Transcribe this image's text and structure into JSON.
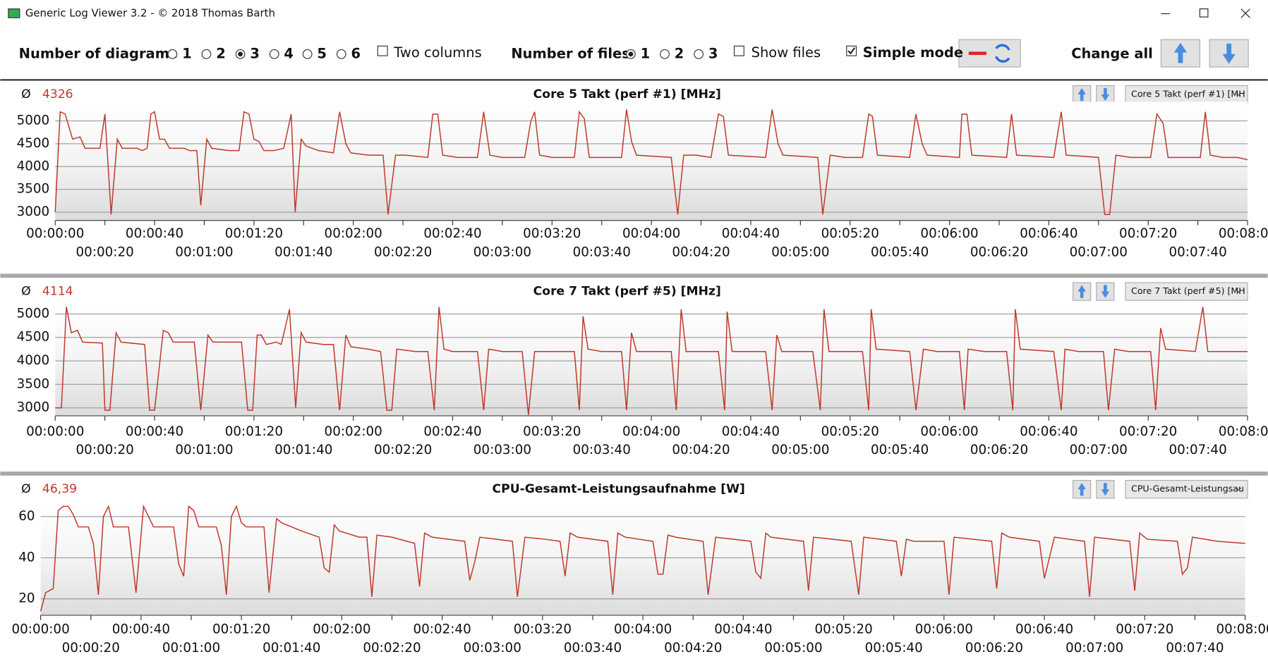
{
  "window": {
    "title": "Generic Log Viewer 3.2 - © 2018 Thomas Barth"
  },
  "toolbar": {
    "diagrams_label": "Number of diagrams",
    "diagram_options": [
      {
        "label": "1",
        "checked": false
      },
      {
        "label": "2",
        "checked": false
      },
      {
        "label": "3",
        "checked": true
      },
      {
        "label": "4",
        "checked": false
      },
      {
        "label": "5",
        "checked": false
      },
      {
        "label": "6",
        "checked": false
      }
    ],
    "two_columns": {
      "label": "Two columns",
      "checked": false
    },
    "files_label": "Number of files",
    "file_options": [
      {
        "label": "1",
        "checked": true
      },
      {
        "label": "2",
        "checked": false
      },
      {
        "label": "3",
        "checked": false
      }
    ],
    "show_files": {
      "label": "Show files",
      "checked": false
    },
    "simple_mode": {
      "label": "Simple mode",
      "checked": true
    },
    "change_all": "Change all"
  },
  "panels": [
    {
      "symbol": "Ø",
      "average": "4326",
      "selector": "Core 5 Takt (perf #1) [MH"
    },
    {
      "symbol": "Ø",
      "average": "4114",
      "selector": "Core 7 Takt (perf #5) [MH"
    },
    {
      "symbol": "Ø",
      "average": "46,39",
      "selector": "CPU-Gesamt-Leistungsau"
    }
  ],
  "chart_data": [
    {
      "type": "line",
      "title": "Core 5 Takt (perf #1) [MHz]",
      "color": "#c0392b",
      "grid": true,
      "x": [
        0,
        2,
        4,
        7,
        10,
        12,
        18,
        20,
        22.5,
        25,
        27,
        33,
        35,
        37,
        38.5,
        40,
        42,
        44,
        46,
        52,
        54,
        57,
        58.6,
        61,
        63,
        70,
        74,
        76,
        78,
        80,
        82,
        84,
        88,
        92,
        95,
        96.6,
        99,
        101,
        106,
        112,
        114.5,
        117,
        119,
        126,
        132,
        134,
        137,
        141,
        150,
        152,
        154,
        156,
        162,
        170,
        172.5,
        175,
        180,
        189,
        191.5,
        193,
        195,
        200,
        209,
        211,
        213,
        215,
        228,
        230,
        232,
        234,
        248,
        250.6,
        253,
        258,
        264,
        267,
        269,
        271,
        286,
        288.6,
        291,
        293,
        307,
        309,
        312,
        318,
        325,
        327.5,
        329,
        331,
        344,
        346.5,
        349,
        351,
        364,
        365,
        367,
        369,
        383,
        385,
        387,
        402,
        405,
        407,
        420,
        422.5,
        424.5,
        427,
        433,
        441,
        443.5,
        446,
        448,
        461,
        463,
        465,
        470,
        476,
        480
      ],
      "values": [
        3000,
        5200,
        5150,
        4600,
        4650,
        4400,
        4400,
        5150,
        2950,
        4600,
        4400,
        4400,
        4350,
        4400,
        5150,
        5200,
        4600,
        4600,
        4400,
        4400,
        4350,
        4350,
        3150,
        4600,
        4400,
        4350,
        4350,
        5200,
        5150,
        4600,
        4550,
        4350,
        4350,
        4400,
        5150,
        3000,
        4600,
        4450,
        4350,
        4300,
        5200,
        4500,
        4300,
        4250,
        4250,
        2950,
        4250,
        4250,
        4200,
        5150,
        5150,
        4250,
        4200,
        4200,
        5200,
        4250,
        4200,
        4200,
        5000,
        5200,
        4250,
        4200,
        4200,
        5200,
        5050,
        4200,
        4200,
        5250,
        4550,
        4250,
        4200,
        2950,
        4250,
        4250,
        4200,
        5150,
        5100,
        4250,
        4200,
        5250,
        4500,
        4250,
        4200,
        2950,
        4250,
        4200,
        4200,
        5150,
        5100,
        4250,
        4200,
        5150,
        4500,
        4250,
        4200,
        5150,
        5150,
        4250,
        4200,
        5150,
        4250,
        4200,
        5200,
        4250,
        4200,
        2950,
        2950,
        4250,
        4200,
        4200,
        5150,
        4950,
        4200,
        4200,
        5200,
        4250,
        4200,
        4200,
        4150
      ],
      "xlim": [
        0,
        480
      ],
      "xticks": [
        {
          "value": 0,
          "label": "00:00:00"
        },
        {
          "value": 20,
          "label": "00:00:20"
        },
        {
          "value": 40,
          "label": "00:00:40"
        },
        {
          "value": 60,
          "label": "00:01:00"
        },
        {
          "value": 80,
          "label": "00:01:20"
        },
        {
          "value": 100,
          "label": "00:01:40"
        },
        {
          "value": 120,
          "label": "00:02:00"
        },
        {
          "value": 140,
          "label": "00:02:20"
        },
        {
          "value": 160,
          "label": "00:02:40"
        },
        {
          "value": 180,
          "label": "00:03:00"
        },
        {
          "value": 200,
          "label": "00:03:20"
        },
        {
          "value": 220,
          "label": "00:03:40"
        },
        {
          "value": 240,
          "label": "00:04:00"
        },
        {
          "value": 260,
          "label": "00:04:20"
        },
        {
          "value": 280,
          "label": "00:04:40"
        },
        {
          "value": 300,
          "label": "00:05:00"
        },
        {
          "value": 320,
          "label": "00:05:20"
        },
        {
          "value": 340,
          "label": "00:05:40"
        },
        {
          "value": 360,
          "label": "00:06:00"
        },
        {
          "value": 380,
          "label": "00:06:20"
        },
        {
          "value": 400,
          "label": "00:06:40"
        },
        {
          "value": 420,
          "label": "00:07:00"
        },
        {
          "value": 440,
          "label": "00:07:20"
        },
        {
          "value": 460,
          "label": "00:07:40"
        },
        {
          "value": 480,
          "label": "00:08:00"
        }
      ],
      "ylim": [
        2820,
        5420
      ],
      "yticks": [
        3000,
        3500,
        4000,
        4500,
        5000
      ]
    },
    {
      "type": "line",
      "title": "Core 7 Takt (perf #5) [MHz]",
      "color": "#c0392b",
      "grid": true,
      "x": [
        0,
        2.5,
        4.5,
        6.5,
        9,
        11,
        19,
        20,
        22,
        24.5,
        26.5,
        36,
        38,
        40,
        43.5,
        45.5,
        47.5,
        56,
        58.6,
        61.5,
        63.5,
        75,
        77.5,
        79.5,
        81.3,
        83,
        85,
        89,
        91,
        94.3,
        96.8,
        99,
        101,
        108,
        112,
        114.5,
        117,
        119,
        126,
        131,
        133.5,
        135.5,
        137.5,
        145,
        150,
        152.6,
        154.5,
        156.5,
        160,
        170,
        172.5,
        174.5,
        180,
        188,
        190.5,
        193,
        203,
        209,
        211,
        212.5,
        214.5,
        220,
        228,
        230,
        232,
        234,
        240,
        248,
        250,
        252,
        254,
        267,
        269.5,
        270.5,
        272.5,
        286,
        288.6,
        290.5,
        292.5,
        305,
        308,
        309.5,
        311.5,
        325,
        327.5,
        328.5,
        330.5,
        344,
        346.5,
        349.5,
        355,
        364,
        366,
        367.5,
        374,
        383,
        385.5,
        386.5,
        388.5,
        402,
        405,
        406.5,
        412,
        422,
        424,
        426.5,
        432,
        441,
        443,
        445,
        447,
        459,
        462,
        464,
        470,
        480
      ],
      "values": [
        3000,
        3000,
        5150,
        4600,
        4650,
        4400,
        4380,
        2950,
        2950,
        4600,
        4400,
        4350,
        2950,
        2950,
        4650,
        4600,
        4400,
        4400,
        2950,
        4550,
        4400,
        4400,
        2950,
        2950,
        4550,
        4550,
        4350,
        4400,
        4350,
        5100,
        3000,
        4600,
        4400,
        4350,
        4350,
        2950,
        4550,
        4300,
        4250,
        4200,
        2950,
        2950,
        4250,
        4200,
        4200,
        2950,
        5150,
        4250,
        4200,
        4200,
        2950,
        4250,
        4200,
        4200,
        2850,
        4200,
        4200,
        4200,
        2950,
        4950,
        4250,
        4200,
        4200,
        2950,
        4600,
        4200,
        4200,
        4200,
        2950,
        5100,
        4200,
        4200,
        2950,
        5050,
        4200,
        4200,
        2950,
        4550,
        4200,
        4200,
        2950,
        5100,
        4200,
        4200,
        2950,
        5100,
        4250,
        4200,
        2950,
        4250,
        4200,
        4200,
        2950,
        4250,
        4200,
        4200,
        2950,
        5100,
        4250,
        4200,
        2950,
        4250,
        4200,
        4200,
        2950,
        4250,
        4200,
        4200,
        2950,
        4700,
        4250,
        4200,
        5150,
        4200,
        4200,
        4200
      ],
      "xlim": [
        0,
        480
      ],
      "xticks": [
        {
          "value": 0,
          "label": "00:00:00"
        },
        {
          "value": 20,
          "label": "00:00:20"
        },
        {
          "value": 40,
          "label": "00:00:40"
        },
        {
          "value": 60,
          "label": "00:01:00"
        },
        {
          "value": 80,
          "label": "00:01:20"
        },
        {
          "value": 100,
          "label": "00:01:40"
        },
        {
          "value": 120,
          "label": "00:02:00"
        },
        {
          "value": 140,
          "label": "00:02:20"
        },
        {
          "value": 160,
          "label": "00:02:40"
        },
        {
          "value": 180,
          "label": "00:03:00"
        },
        {
          "value": 200,
          "label": "00:03:20"
        },
        {
          "value": 220,
          "label": "00:03:40"
        },
        {
          "value": 240,
          "label": "00:04:00"
        },
        {
          "value": 260,
          "label": "00:04:20"
        },
        {
          "value": 280,
          "label": "00:04:40"
        },
        {
          "value": 300,
          "label": "00:05:00"
        },
        {
          "value": 320,
          "label": "00:05:20"
        },
        {
          "value": 340,
          "label": "00:05:40"
        },
        {
          "value": 360,
          "label": "00:06:00"
        },
        {
          "value": 380,
          "label": "00:06:20"
        },
        {
          "value": 400,
          "label": "00:06:40"
        },
        {
          "value": 420,
          "label": "00:07:00"
        },
        {
          "value": 440,
          "label": "00:07:20"
        },
        {
          "value": 460,
          "label": "00:07:40"
        },
        {
          "value": 480,
          "label": "00:08:00"
        }
      ],
      "ylim": [
        2830,
        5220
      ],
      "yticks": [
        3000,
        3500,
        4000,
        4500,
        5000
      ]
    },
    {
      "type": "line",
      "title": "CPU-Gesamt-Leistungsaufnahme [W]",
      "color": "#c0392b",
      "grid": true,
      "x": [
        0,
        2,
        5,
        7,
        9,
        11,
        13,
        15,
        19,
        21,
        23,
        25,
        27,
        29,
        35,
        38,
        41,
        43,
        45,
        53,
        55,
        57,
        59,
        61,
        63,
        70,
        72,
        74,
        76,
        78,
        80,
        82,
        89,
        91,
        94,
        96,
        104,
        111,
        113,
        115,
        117,
        119,
        127,
        130,
        132,
        134,
        140,
        149,
        151,
        153,
        156,
        169,
        171,
        173,
        175,
        188,
        190,
        193,
        201,
        207,
        209,
        211,
        214,
        226,
        228,
        230,
        233,
        244,
        246,
        248,
        250,
        253,
        264,
        266,
        269,
        283,
        285,
        287,
        289,
        291,
        304,
        306,
        308,
        323,
        326,
        328,
        341,
        343,
        345,
        348,
        360,
        362,
        364,
        379,
        381,
        383,
        386,
        398,
        400,
        402,
        404,
        416,
        418,
        420,
        434,
        436,
        438,
        441,
        453,
        455,
        457,
        459,
        469,
        480
      ],
      "values": [
        14,
        23,
        25,
        63,
        65,
        65,
        61,
        55,
        55,
        47,
        22,
        60,
        65,
        55,
        55,
        23,
        65,
        60,
        55,
        55,
        37,
        31,
        65,
        63,
        55,
        55,
        46,
        22,
        60,
        65,
        57,
        55,
        55,
        23,
        59,
        57,
        53,
        50,
        35,
        33,
        56,
        53,
        50,
        50,
        21,
        51,
        50,
        47,
        26,
        52,
        50,
        48,
        29,
        38,
        50,
        48,
        21,
        50,
        49,
        48,
        31,
        52,
        50,
        48,
        22,
        52,
        50,
        48,
        32,
        32,
        51,
        50,
        48,
        22,
        50,
        48,
        33,
        30,
        52,
        50,
        48,
        24,
        50,
        48,
        22,
        50,
        48,
        31,
        49,
        48,
        48,
        22,
        50,
        48,
        25,
        52,
        50,
        48,
        30,
        40,
        50,
        48,
        21,
        50,
        48,
        24,
        52,
        49,
        48,
        32,
        35,
        50,
        48,
        47
      ],
      "xlim": [
        0,
        480
      ],
      "xticks": [
        {
          "value": 0,
          "label": "00:00:00"
        },
        {
          "value": 20,
          "label": "00:00:20"
        },
        {
          "value": 40,
          "label": "00:00:40"
        },
        {
          "value": 60,
          "label": "00:01:00"
        },
        {
          "value": 80,
          "label": "00:01:20"
        },
        {
          "value": 100,
          "label": "00:01:40"
        },
        {
          "value": 120,
          "label": "00:02:00"
        },
        {
          "value": 140,
          "label": "00:02:20"
        },
        {
          "value": 160,
          "label": "00:02:40"
        },
        {
          "value": 180,
          "label": "00:03:00"
        },
        {
          "value": 200,
          "label": "00:03:20"
        },
        {
          "value": 220,
          "label": "00:03:40"
        },
        {
          "value": 240,
          "label": "00:04:00"
        },
        {
          "value": 260,
          "label": "00:04:20"
        },
        {
          "value": 280,
          "label": "00:04:40"
        },
        {
          "value": 300,
          "label": "00:05:00"
        },
        {
          "value": 320,
          "label": "00:05:20"
        },
        {
          "value": 340,
          "label": "00:05:40"
        },
        {
          "value": 360,
          "label": "00:06:00"
        },
        {
          "value": 380,
          "label": "00:06:20"
        },
        {
          "value": 400,
          "label": "00:06:40"
        },
        {
          "value": 420,
          "label": "00:07:00"
        },
        {
          "value": 440,
          "label": "00:07:20"
        },
        {
          "value": 460,
          "label": "00:07:40"
        },
        {
          "value": 480,
          "label": "00:08:00"
        }
      ],
      "ylim": [
        12,
        67
      ],
      "yticks": [
        20,
        40,
        60
      ]
    }
  ]
}
